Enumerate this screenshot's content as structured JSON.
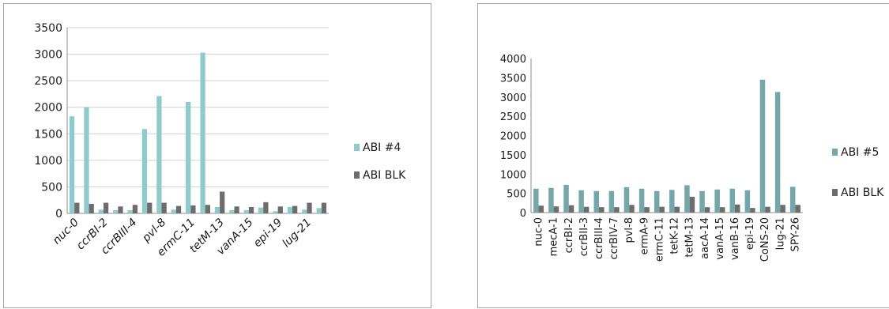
{
  "chart_data": [
    {
      "type": "bar",
      "categories": [
        "nuc-0",
        "",
        "ccrBI-2",
        "",
        "ccrBIII-4",
        "",
        "pvl-8",
        "",
        "ermC-11",
        "",
        "tetM-13",
        "",
        "vanA-15",
        "",
        "epi-19",
        "",
        "lug-21",
        ""
      ],
      "series": [
        {
          "name": "ABI #4",
          "color": "#8ecbcb",
          "values": [
            1830,
            2000,
            70,
            60,
            60,
            1590,
            2210,
            70,
            2100,
            3030,
            120,
            60,
            60,
            110,
            40,
            120,
            70,
            100
          ]
        },
        {
          "name": "ABI BLK",
          "color": "#6d6d6d",
          "values": [
            200,
            180,
            200,
            130,
            160,
            200,
            200,
            140,
            150,
            160,
            410,
            130,
            120,
            210,
            130,
            140,
            200,
            200
          ]
        }
      ],
      "ylim": [
        0,
        3500
      ],
      "yticks": [
        "0",
        "500",
        "1000",
        "1500",
        "2000",
        "2500",
        "3000",
        "3500"
      ],
      "legend": "right",
      "grid": true
    },
    {
      "type": "bar",
      "categories": [
        "nuc-0",
        "mecA-1",
        "ccrBI-2",
        "ccrBII-3",
        "ccrBIII-4",
        "ccrBIV-7",
        "pvl-8",
        "ermA-9",
        "ermC-11",
        "tetK-12",
        "tetM-13",
        "aacA-14",
        "vanA-15",
        "vanB-16",
        "epi-19",
        "CoNS-20",
        "lug-21",
        "SPY-26"
      ],
      "series": [
        {
          "name": "ABI #5",
          "color": "#74a7a7",
          "values": [
            620,
            640,
            720,
            580,
            560,
            560,
            660,
            620,
            560,
            590,
            710,
            560,
            600,
            620,
            580,
            3450,
            3130,
            670
          ]
        },
        {
          "name": "ABI BLK",
          "color": "#6d6d6d",
          "values": [
            180,
            160,
            190,
            150,
            140,
            140,
            200,
            140,
            150,
            150,
            410,
            140,
            140,
            210,
            120,
            150,
            200,
            200
          ]
        }
      ],
      "ylim": [
        0,
        4000
      ],
      "yticks": [
        "0",
        "500",
        "1000",
        "1500",
        "2000",
        "2500",
        "3000",
        "3500",
        "4000"
      ],
      "legend": "right",
      "grid": false
    }
  ]
}
